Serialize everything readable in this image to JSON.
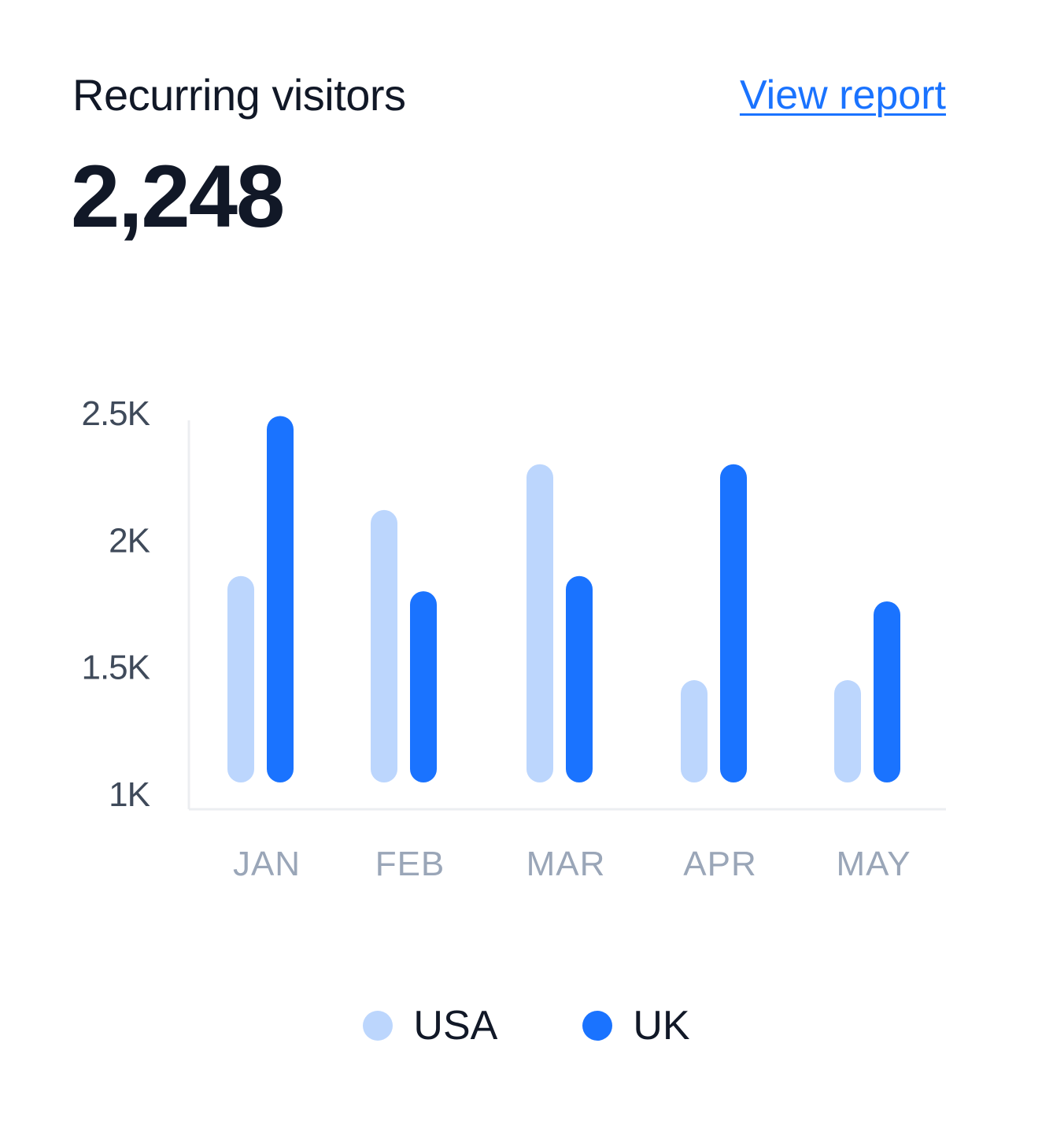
{
  "header": {
    "title": "Recurring visitors",
    "link_label": "View report",
    "total": "2,248"
  },
  "colors": {
    "usa": "#bcd6fd",
    "uk": "#1a73ff",
    "axis_text": "#3f4a5a",
    "month_text": "#9aa6b8",
    "axis_line": "#eceef1"
  },
  "chart_data": {
    "type": "bar",
    "categories": [
      "JAN",
      "FEB",
      "MAR",
      "APR",
      "MAY"
    ],
    "series": [
      {
        "name": "USA",
        "values": [
          1850,
          2110,
          2290,
          1440,
          1440
        ]
      },
      {
        "name": "UK",
        "values": [
          2480,
          1790,
          1850,
          2290,
          1750
        ]
      }
    ],
    "yticks": [
      "1K",
      "1.5K",
      "2K",
      "2.5K"
    ],
    "ytick_values": [
      1000,
      1500,
      2000,
      2500
    ],
    "ylim": [
      1000,
      2500
    ],
    "grid": false,
    "legend": "bottom-center"
  }
}
